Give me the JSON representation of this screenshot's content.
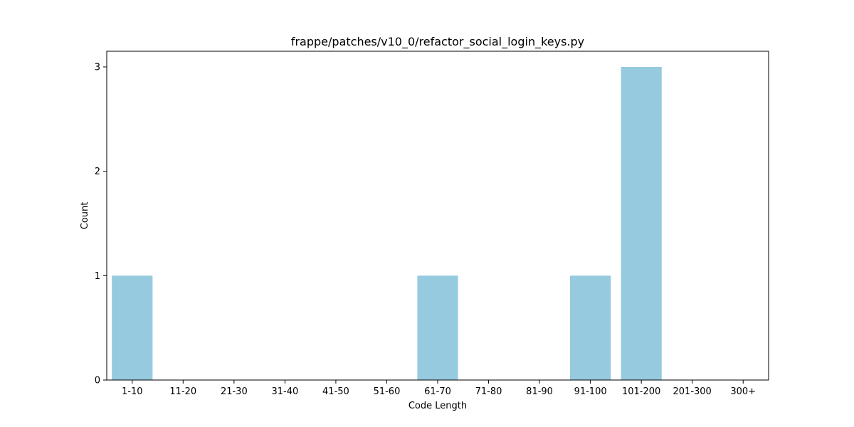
{
  "chart_data": {
    "type": "bar",
    "title": "frappe/patches/v10_0/refactor_social_login_keys.py",
    "xlabel": "Code Length",
    "ylabel": "Count",
    "categories": [
      "1-10",
      "11-20",
      "21-30",
      "31-40",
      "41-50",
      "51-60",
      "61-70",
      "71-80",
      "81-90",
      "91-100",
      "101-200",
      "201-300",
      "300+"
    ],
    "values": [
      1,
      0,
      0,
      0,
      0,
      0,
      1,
      0,
      0,
      1,
      3,
      0,
      0
    ],
    "yticks": [
      "0",
      "1",
      "2",
      "3"
    ],
    "ylim": [
      0,
      3.15
    ],
    "grid": false,
    "bar_color": "#96cbdf",
    "axis_color": "#000000"
  }
}
